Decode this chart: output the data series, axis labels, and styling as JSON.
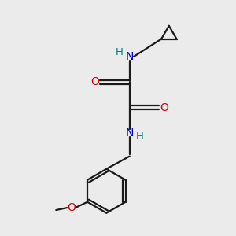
{
  "background_color": "#ebebeb",
  "bond_color": "#1a1a1a",
  "oxygen_color": "#cc0000",
  "nitrogen_color": "#0000cc",
  "hydrogen_color": "#008080",
  "line_width": 1.6,
  "figsize": [
    3.0,
    3.0
  ],
  "dpi": 100,
  "xlim": [
    0,
    10
  ],
  "ylim": [
    0,
    10
  ]
}
